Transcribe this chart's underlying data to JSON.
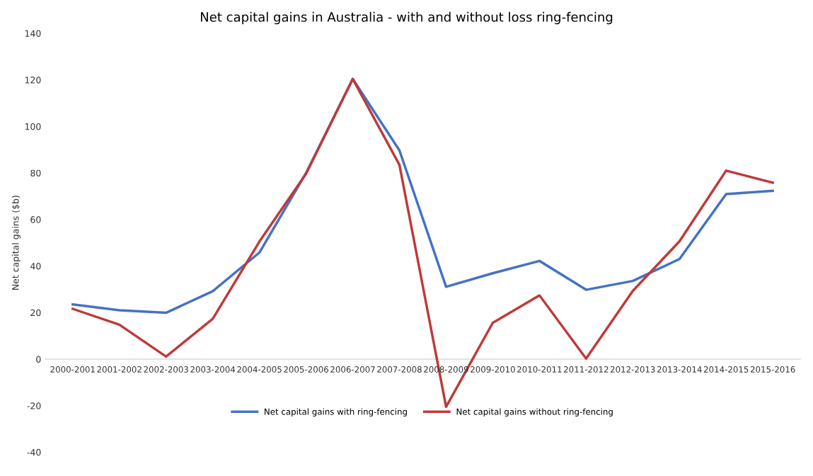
{
  "chart_data": {
    "type": "line",
    "title": "Net capital gains in Australia - with and without loss ring-fencing",
    "ylabel": "Net capital gains ($b)",
    "categories": [
      "2000-2001",
      "2001-2002",
      "2002-2003",
      "2003-2004",
      "2004-2005",
      "2005-2006",
      "2006-2007",
      "2007-2008",
      "2008-2009",
      "2009-2010",
      "2010-2011",
      "2011-2012",
      "2012-2013",
      "2013-2014",
      "2014-2015",
      "2015-2016"
    ],
    "series": [
      {
        "name": "Net capital gains with ring-fencing",
        "color": "#4472c4",
        "values": [
          23.5,
          21,
          19.9,
          29.2,
          45.8,
          80,
          120.4,
          89.7,
          31.1,
          36.9,
          42.2,
          29.8,
          33.6,
          43,
          70.9,
          72.3
        ]
      },
      {
        "name": "Net capital gains without ring-fencing",
        "color": "#be3a3a",
        "values": [
          21.6,
          14.8,
          1.1,
          17.3,
          50.5,
          79.7,
          120.4,
          83.5,
          -20.5,
          15.6,
          27.4,
          0.2,
          29.3,
          50.6,
          81,
          75.8
        ]
      }
    ],
    "ylim": [
      -40,
      140
    ],
    "yticks": [
      -40,
      -20,
      0,
      20,
      40,
      60,
      80,
      100,
      120,
      140
    ],
    "grid": false,
    "legend": "bottom",
    "marker": "none",
    "line_style": "solid"
  }
}
